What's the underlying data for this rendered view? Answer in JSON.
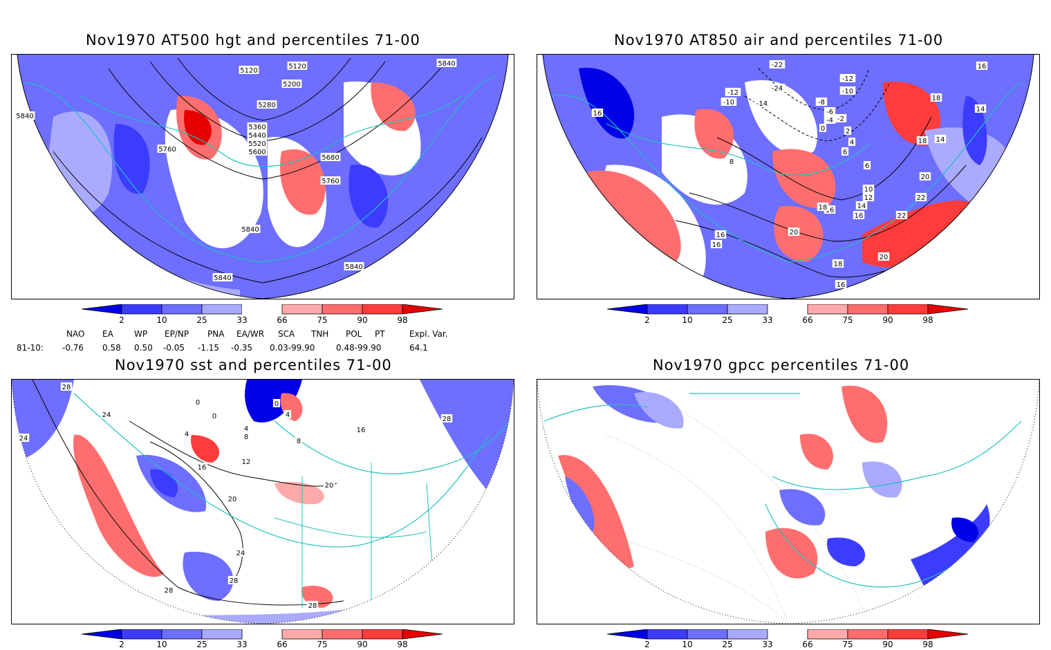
{
  "panels": [
    {
      "title": "Nov1970 AT500 hgt and percentiles 71-00",
      "contour_labels": [
        "5120",
        "5120",
        "5200",
        "5280",
        "5360",
        "5440",
        "5520",
        "5600",
        "5680",
        "5760",
        "5760",
        "5840",
        "5840",
        "5840",
        "5840",
        "5840"
      ]
    },
    {
      "title": "Nov1970 AT850 air and percentiles 71-00",
      "contour_labels": [
        "-22",
        "-24",
        "-12",
        "-10",
        "-14",
        "-12",
        "-10",
        "-8",
        "-6",
        "-4",
        "-2",
        "0",
        "2",
        "4",
        "6",
        "8",
        "10",
        "12",
        "14",
        "14",
        "14",
        "16",
        "16",
        "16",
        "16",
        "16",
        "16",
        "16",
        "18",
        "18",
        "18",
        "18",
        "20",
        "20",
        "20",
        "22",
        "22",
        "6"
      ]
    },
    {
      "title": "Nov1970 sst and percentiles 71-00",
      "contour_labels": [
        "28",
        "24",
        "24",
        "0",
        "0",
        "0",
        "4",
        "4",
        "4",
        "8",
        "8",
        "12",
        "16",
        "16",
        "20",
        "20",
        "24",
        "28",
        "28",
        "28",
        "28"
      ]
    },
    {
      "title": "Nov1970 gpcc percentiles 71-00",
      "contour_labels": []
    }
  ],
  "colorbar": {
    "labels": [
      "2",
      "10",
      "25",
      "33",
      "66",
      "75",
      "90",
      "98"
    ],
    "colors": [
      "#0000e6",
      "#3c3cff",
      "#6e6eff",
      "#aaaaff",
      "#ffffff",
      "#ffaaaa",
      "#ff6e6e",
      "#ff3c3c",
      "#e60000"
    ]
  },
  "index_table": {
    "headers": [
      "NAO",
      "EA",
      "WP",
      "EP/NP",
      "PNA",
      "EA/WR",
      "SCA",
      "TNH",
      "POL",
      "PT",
      "Expl. Var."
    ],
    "row_label": "81-10:",
    "values": [
      "-0.76",
      "0.58",
      "0.50",
      "-0.05",
      "-1.15",
      "-0.35",
      "0.03-99.90",
      "0.48-99.90",
      "64.1"
    ]
  },
  "style": {
    "coast_color": "#20c0c0",
    "blue": "#5555ff",
    "lightblue": "#aaaaff",
    "red": "#ff5555",
    "lightred": "#ffaaaa"
  }
}
